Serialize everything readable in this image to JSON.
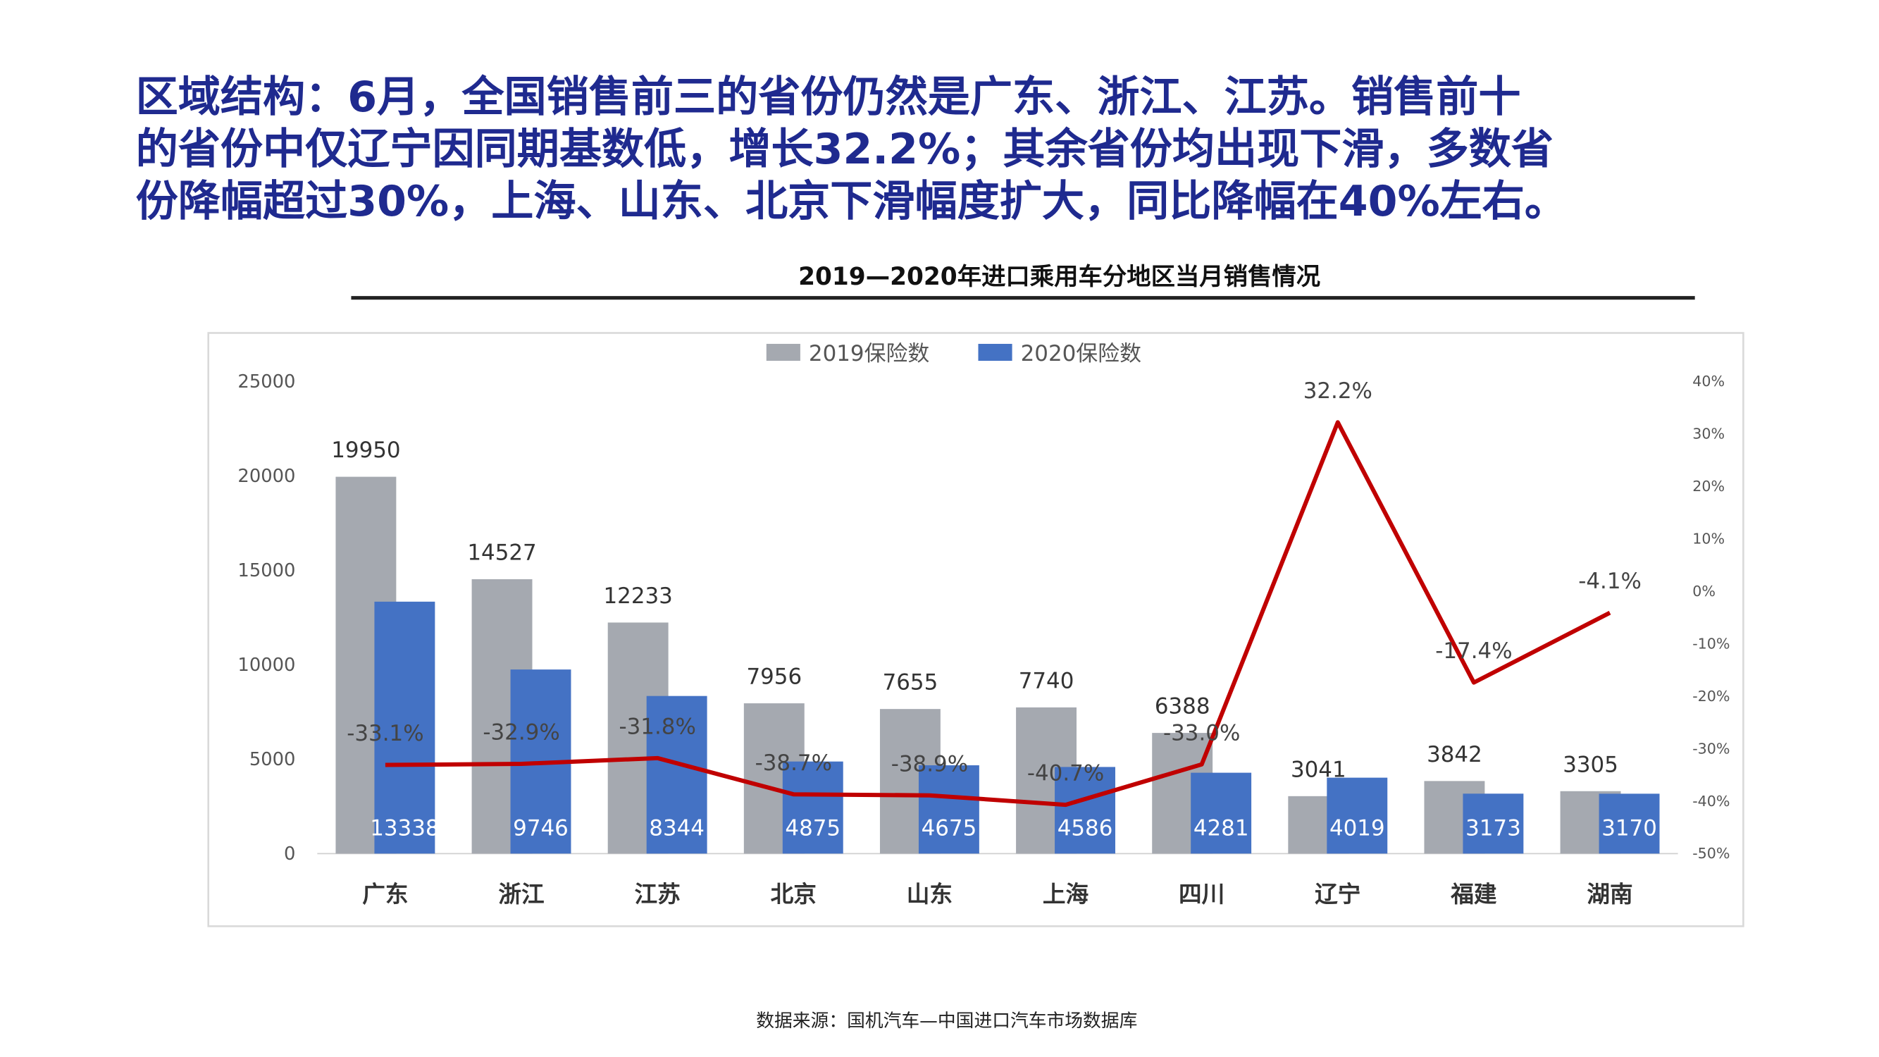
{
  "headline": [
    "区域结构：6月，全国销售前三的省份仍然是广东、浙江、江苏。销售前十",
    "的省份中仅辽宁因同期基数低，增长32.2%；其余省份均出现下滑，多数省",
    "份降幅超过30%，上海、山东、北京下滑幅度扩大，同比降幅在40%左右。"
  ],
  "source": "数据来源：国机汽车—中国进口汽车市场数据库",
  "chart_data": {
    "type": "bar",
    "title": "2019—2020年进口乘用车分地区当月销售情况",
    "legend": "top",
    "grid": false,
    "categories": [
      "广东",
      "浙江",
      "江苏",
      "北京",
      "山东",
      "上海",
      "四川",
      "辽宁",
      "福建",
      "湖南"
    ],
    "series": [
      {
        "name": "2019保险数",
        "color": "#a5a9b0",
        "values": [
          19950,
          14527,
          12233,
          7956,
          7655,
          7740,
          6388,
          3041,
          3842,
          3305
        ]
      },
      {
        "name": "2020保险数",
        "color": "#4472c4",
        "values": [
          13338,
          9746,
          8344,
          4875,
          4675,
          4586,
          4281,
          4019,
          3173,
          3170
        ]
      },
      {
        "type": "line",
        "axis": "y2",
        "color": "#c00000",
        "values": [
          -33.1,
          -32.9,
          -31.8,
          -38.7,
          -38.9,
          -40.7,
          -33,
          32.2,
          -17.4,
          -4.1
        ],
        "value_labels": [
          "-33.1%",
          "-32.9%",
          "-31.8%",
          "-38.7%",
          "-38.9%",
          "-40.7%",
          "-33.0%",
          "32.2%",
          "-17.4%",
          "-4.1%"
        ]
      }
    ],
    "ylim": [
      0,
      25000
    ],
    "yticks": [
      0,
      5000,
      10000,
      15000,
      20000,
      25000
    ],
    "y2lim": [
      -50,
      40
    ],
    "y2ticks": [
      {
        "value": -50,
        "label": "-50%"
      },
      {
        "value": -40,
        "label": "-40%"
      },
      {
        "value": -30,
        "label": "-30%"
      },
      {
        "value": -20,
        "label": "-20%"
      },
      {
        "value": -10,
        "label": "-10%"
      },
      {
        "value": 0,
        "label": "0%"
      },
      {
        "value": 10,
        "label": "10%"
      },
      {
        "value": 20,
        "label": "20%"
      },
      {
        "value": 30,
        "label": "30%"
      },
      {
        "value": 40,
        "label": "40%"
      }
    ]
  }
}
